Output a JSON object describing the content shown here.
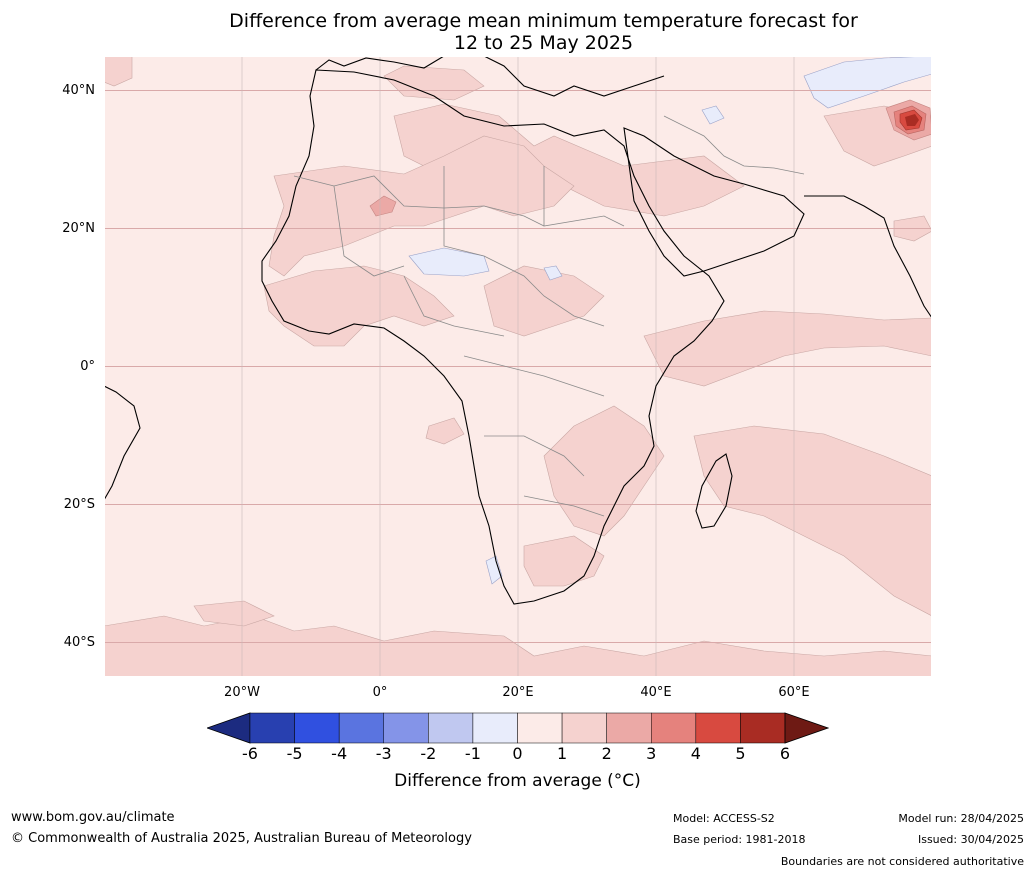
{
  "title": {
    "line1": "Difference from average mean minimum temperature forecast for",
    "line2": "12 to 25 May 2025"
  },
  "map": {
    "lat_labels": [
      "40°N",
      "20°N",
      "0°",
      "20°S",
      "40°S"
    ],
    "lat_values": [
      40,
      20,
      0,
      -20,
      -40
    ],
    "lon_labels": [
      "20°W",
      "0°",
      "20°E",
      "40°E",
      "60°E"
    ],
    "lon_values": [
      -20,
      0,
      20,
      40,
      60
    ],
    "lon_range": [
      -40,
      80
    ],
    "lat_range": [
      -45,
      45
    ],
    "colors": {
      "ocean_base": "#fcebe8",
      "warm_1_2": "#f5d2cf",
      "warm_2_3": "#eba9a6",
      "warm_3_4": "#e5827d",
      "warm_4_5": "#d84a40",
      "warm_5_6": "#a92c23",
      "cool_0_m1": "#e8ecfb",
      "gridline": "#d9a9a9",
      "coast": "#000000",
      "border": "#8a8a8a"
    }
  },
  "colorbar": {
    "ticks": [
      "-6",
      "-5",
      "-4",
      "-3",
      "-2",
      "-1",
      "0",
      "1",
      "2",
      "3",
      "4",
      "5",
      "6"
    ],
    "colors": [
      "#1c2b80",
      "#2840b0",
      "#3050e0",
      "#5a74e0",
      "#8494e8",
      "#c0c8f0",
      "#e8ecfb",
      "#fcebe8",
      "#f5d2cf",
      "#eba9a6",
      "#e5827d",
      "#d84a40",
      "#a92c23",
      "#6e1a14"
    ],
    "title": "Difference from average (°C)"
  },
  "footer": {
    "website": "www.bom.gov.au/climate",
    "copyright": "© Commonwealth of Australia 2025, Australian Bureau of Meteorology",
    "model": "Model: ACCESS-S2",
    "base_period": "Base period: 1981-2018",
    "model_run": "Model run: 28/04/2025",
    "issued": "Issued: 30/04/2025",
    "disclaimer": "Boundaries are not considered authoritative"
  }
}
